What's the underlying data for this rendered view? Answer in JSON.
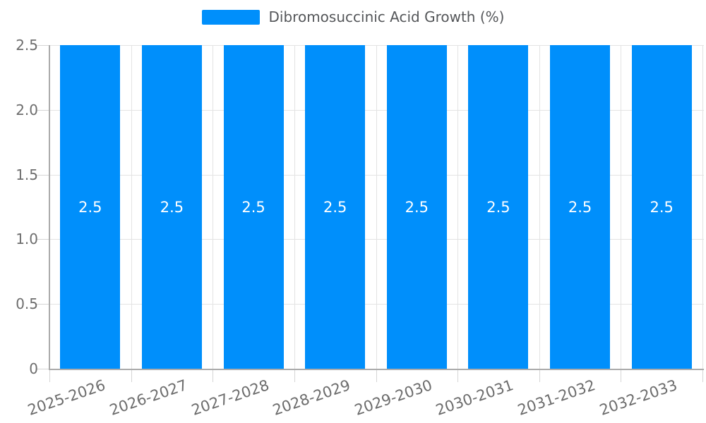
{
  "chart_data": {
    "type": "bar",
    "title": "Dibromosuccinic Acid Growth (%)",
    "categories": [
      "2025-2026",
      "2026-2027",
      "2027-2028",
      "2028-2029",
      "2029-2030",
      "2030-2031",
      "2031-2032",
      "2032-2033"
    ],
    "series": [
      {
        "name": "Dibromosuccinic Acid Growth (%)",
        "values": [
          2.5,
          2.5,
          2.5,
          2.5,
          2.5,
          2.5,
          2.5,
          2.5
        ]
      }
    ],
    "bar_labels": [
      "2.5",
      "2.5",
      "2.5",
      "2.5",
      "2.5",
      "2.5",
      "2.5",
      "2.5"
    ],
    "xlabel": "",
    "ylabel": "",
    "ylim": [
      0,
      2.5
    ],
    "ytick_labels": [
      "2.5",
      "2.0",
      "1.5",
      "1.0",
      "0.5",
      "0"
    ],
    "grid": true,
    "legend_position": "top-center",
    "colors": {
      "bar": "#008FFB",
      "grid": "#e3e3e3",
      "tick": "#d5d5d5",
      "axis": "#ababab",
      "axis_label": "#6d6d6d",
      "legend_text": "#55575a",
      "data_label": "#ffffff",
      "background": "#ffffff"
    }
  },
  "legend": {
    "label": "Dibromosuccinic Acid Growth (%)"
  }
}
